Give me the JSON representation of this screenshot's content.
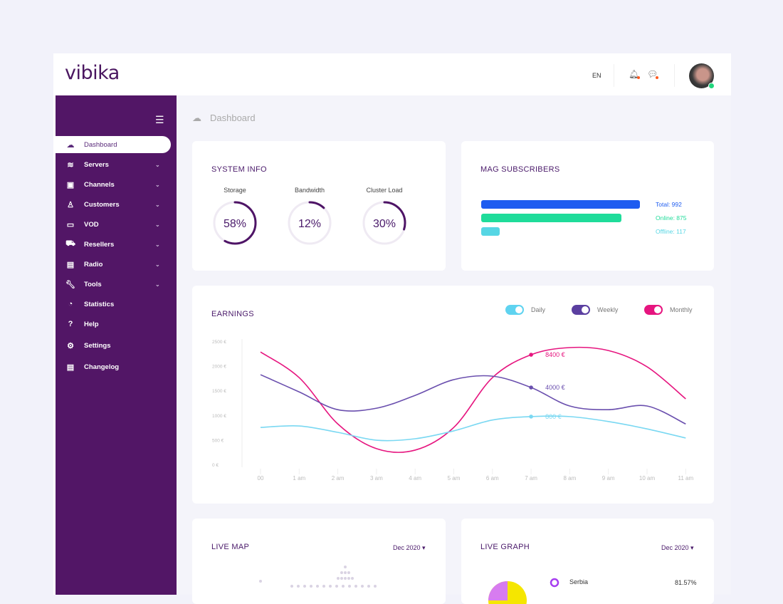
{
  "header": {
    "logo": "vibika",
    "language": "EN",
    "notification_icon": "bell-icon",
    "messages_icon": "chat-icon"
  },
  "sidebar": {
    "items": [
      {
        "label": "Dashboard",
        "icon": "cloud-dashboard-icon",
        "active": true,
        "expandable": false
      },
      {
        "label": "Servers",
        "icon": "layers-icon",
        "expandable": true
      },
      {
        "label": "Channels",
        "icon": "tv-icon",
        "expandable": true
      },
      {
        "label": "Customers",
        "icon": "user-icon",
        "expandable": true
      },
      {
        "label": "VOD",
        "icon": "video-camera-icon",
        "expandable": true
      },
      {
        "label": "Resellers",
        "icon": "cart-icon",
        "expandable": true
      },
      {
        "label": "Radio",
        "icon": "radio-icon",
        "expandable": true
      },
      {
        "label": "Tools",
        "icon": "wrench-icon",
        "expandable": true
      },
      {
        "label": "Statistics",
        "icon": "clock-chart-icon",
        "expandable": false
      },
      {
        "label": "Help",
        "icon": "question-icon",
        "expandable": false
      },
      {
        "label": "Settings",
        "icon": "gear-icon",
        "expandable": false
      },
      {
        "label": "Changelog",
        "icon": "clipboard-icon",
        "expandable": false
      }
    ]
  },
  "breadcrumb": {
    "title": "Dashboard"
  },
  "system_info": {
    "title": "SYSTEM INFO",
    "gauges": [
      {
        "label": "Storage",
        "value": "58%",
        "fraction": 0.58
      },
      {
        "label": "Bandwidth",
        "value": "12%",
        "fraction": 0.12
      },
      {
        "label": "Cluster Load",
        "value": "30%",
        "fraction": 0.3
      }
    ]
  },
  "mag": {
    "title": "MAG SUBSCRIBERS",
    "bars": [
      {
        "label": "Total: 992",
        "value": 992,
        "color": "#1e5cf0"
      },
      {
        "label": "Online: 875",
        "value": 875,
        "color": "#1fdc9a"
      },
      {
        "label": "Offline: 117",
        "value": 117,
        "color": "#56d6e4"
      }
    ]
  },
  "earnings": {
    "title": "EARNINGS",
    "toggles": [
      {
        "label": "Daily",
        "color": "#5fd3f0",
        "on": true
      },
      {
        "label": "Weekly",
        "color": "#5b3fa0",
        "on": true
      },
      {
        "label": "Monthly",
        "color": "#e6157f",
        "on": true
      }
    ]
  },
  "chart_data": {
    "type": "line",
    "categories": [
      "00",
      "1 am",
      "2 am",
      "3 am",
      "4 am",
      "5 am",
      "6 am",
      "7 am",
      "8 am",
      "9 am",
      "10 am",
      "11 am"
    ],
    "yticks": [
      "0 €",
      "500 €",
      "1000 €",
      "1500 €",
      "2000 €",
      "2500 €"
    ],
    "ylim": [
      0,
      2500
    ],
    "series": [
      {
        "name": "Monthly",
        "color": "#e6157f",
        "values": [
          2280,
          1760,
          820,
          320,
          290,
          750,
          1760,
          2225,
          2370,
          2310,
          1980,
          1330
        ],
        "marker_label": "8400 €"
      },
      {
        "name": "Weekly",
        "color": "#6a4fae",
        "values": [
          1820,
          1470,
          1110,
          1140,
          1400,
          1720,
          1790,
          1560,
          1185,
          1110,
          1185,
          820
        ],
        "marker_label": "4000 €"
      },
      {
        "name": "Daily",
        "color": "#7ad8f2",
        "values": [
          750,
          780,
          650,
          490,
          520,
          680,
          900,
          970,
          970,
          870,
          720,
          535
        ],
        "marker_label": "800 €"
      }
    ],
    "marker_category": "7 am"
  },
  "live_map": {
    "title": "LIVE MAP",
    "period": "Dec 2020"
  },
  "live_graph": {
    "title": "LIVE GRAPH",
    "period": "Dec 2020",
    "legend": [
      {
        "label": "Serbia",
        "value": "81.57%"
      }
    ]
  }
}
